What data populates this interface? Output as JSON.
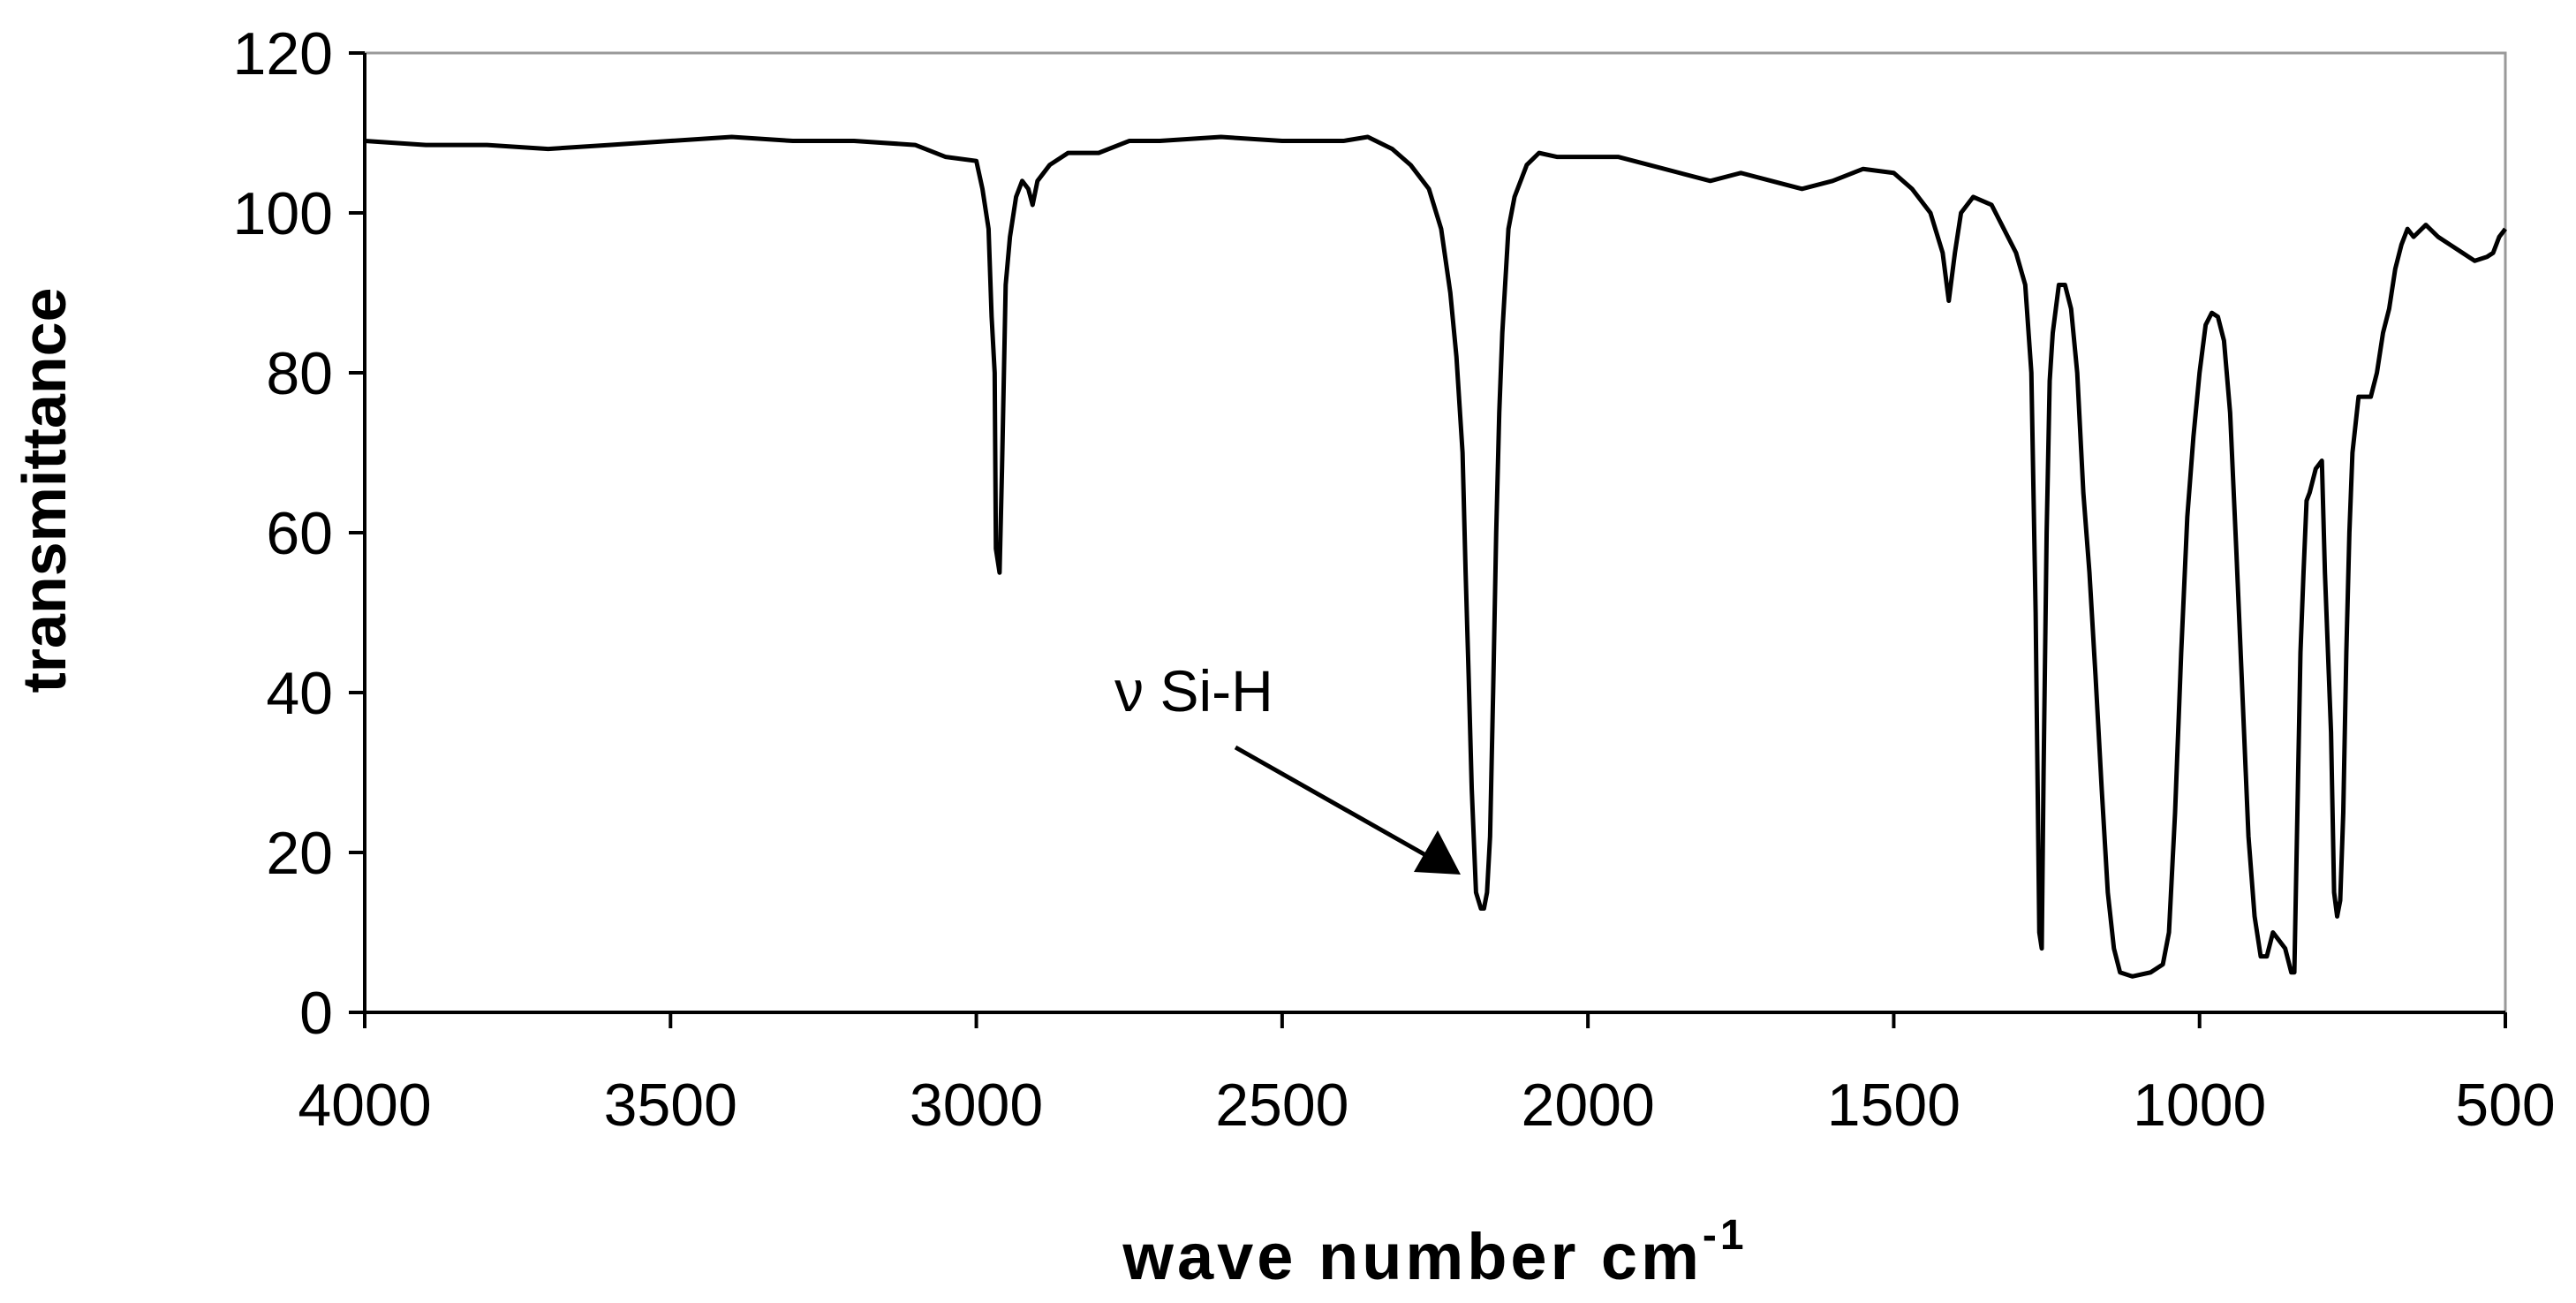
{
  "chart_data": {
    "type": "line",
    "x_label": "wave number cm",
    "x_label_superscript": "-1",
    "y_label": "transmittance",
    "annotation": "ν Si-H",
    "xlim": [
      4000,
      500
    ],
    "xticks": [
      4000,
      3500,
      3000,
      2500,
      2000,
      1500,
      1000,
      500
    ],
    "ylim": [
      0,
      120
    ],
    "yticks": [
      0,
      20,
      40,
      60,
      80,
      100,
      120
    ],
    "color": "#000000",
    "x": [
      4000,
      3900,
      3800,
      3700,
      3600,
      3500,
      3400,
      3300,
      3200,
      3100,
      3050,
      3000,
      2990,
      2980,
      2975,
      2970,
      2968,
      2962,
      2958,
      2952,
      2945,
      2935,
      2925,
      2915,
      2908,
      2900,
      2880,
      2850,
      2800,
      2750,
      2700,
      2600,
      2500,
      2400,
      2360,
      2320,
      2290,
      2260,
      2240,
      2225,
      2215,
      2205,
      2200,
      2195,
      2190,
      2183,
      2175,
      2170,
      2165,
      2160,
      2155,
      2150,
      2145,
      2140,
      2130,
      2120,
      2100,
      2080,
      2050,
      2000,
      1950,
      1900,
      1850,
      1800,
      1750,
      1700,
      1650,
      1600,
      1550,
      1500,
      1470,
      1440,
      1420,
      1410,
      1400,
      1390,
      1370,
      1340,
      1320,
      1300,
      1285,
      1275,
      1268,
      1262,
      1258,
      1255,
      1250,
      1245,
      1240,
      1230,
      1220,
      1210,
      1200,
      1190,
      1180,
      1170,
      1160,
      1150,
      1140,
      1130,
      1110,
      1080,
      1060,
      1050,
      1040,
      1030,
      1020,
      1010,
      1000,
      990,
      980,
      970,
      960,
      950,
      940,
      930,
      920,
      910,
      900,
      890,
      880,
      870,
      860,
      850,
      845,
      840,
      835,
      830,
      825,
      820,
      810,
      800,
      795,
      790,
      785,
      780,
      775,
      770,
      765,
      760,
      755,
      750,
      740,
      720,
      710,
      700,
      690,
      680,
      670,
      660,
      650,
      630,
      610,
      590,
      570,
      550,
      530,
      520,
      510,
      500
    ],
    "values": [
      109,
      108.5,
      108.5,
      108,
      108.5,
      109,
      109.5,
      109,
      109,
      108.5,
      107,
      106.5,
      103,
      98,
      87,
      80,
      58,
      55,
      68,
      91,
      97,
      102,
      104,
      103,
      101,
      104,
      106,
      107.5,
      107.5,
      109,
      109,
      109.5,
      109,
      109,
      109.5,
      108,
      106,
      103,
      98,
      90,
      82,
      70,
      55,
      42,
      28,
      15,
      13,
      13,
      15,
      22,
      40,
      60,
      75,
      85,
      98,
      102,
      106,
      107.5,
      107,
      107,
      107,
      106,
      105,
      104,
      105,
      104,
      103,
      104,
      105.5,
      105,
      103,
      100,
      95,
      89,
      95,
      100,
      102,
      101,
      98,
      95,
      91,
      80,
      50,
      10,
      8,
      30,
      60,
      79,
      85,
      91,
      91,
      88,
      80,
      65,
      55,
      42,
      28,
      15,
      8,
      5,
      4.5,
      5,
      6,
      10,
      25,
      45,
      62,
      72,
      80,
      86,
      87.5,
      87,
      84,
      75,
      58,
      40,
      22,
      12,
      7,
      7,
      10,
      9,
      8,
      5,
      5,
      25,
      45,
      55,
      64,
      65,
      68,
      69,
      55,
      45,
      35,
      15,
      12,
      14,
      25,
      45,
      60,
      70,
      77,
      77,
      80,
      85,
      88,
      93,
      96,
      98,
      97,
      98.5,
      97,
      96,
      95,
      94,
      94.5,
      95,
      97,
      98
    ]
  }
}
